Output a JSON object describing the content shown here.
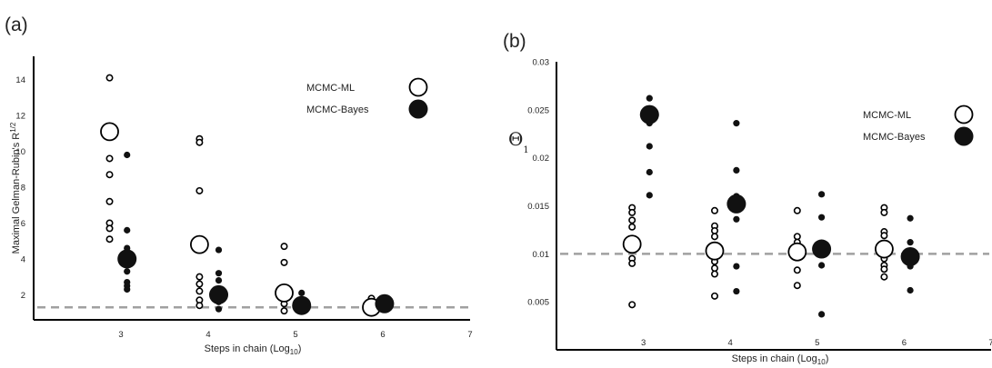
{
  "chart_data": [
    {
      "type": "scatter",
      "panel_label": "(a)",
      "xlabel_main": "Steps in chain (Log",
      "xlabel_sub": "10",
      "xlabel_end": ")",
      "ylabel": "Maximal Gelman-Rubin's R",
      "ylabel_sup": "1/2",
      "xlim": [
        2,
        7
      ],
      "ylim": [
        0.6,
        15.3
      ],
      "xticks": [
        3,
        4,
        5,
        6,
        7
      ],
      "yticks": [
        2,
        4,
        6,
        8,
        10,
        12,
        14
      ],
      "ytick_labels": [
        "2",
        "4",
        "6",
        "8",
        "10",
        "12",
        "14"
      ],
      "reference_line": 1.3,
      "legend": [
        "MCMC-ML",
        "MCMC-Bayes"
      ],
      "series": [
        {
          "name": "MCMC-ML",
          "style": "open",
          "points": [
            [
              2.87,
              14.1
            ],
            [
              2.87,
              9.6
            ],
            [
              2.87,
              8.7
            ],
            [
              2.87,
              7.2
            ],
            [
              2.87,
              6.0
            ],
            [
              2.87,
              5.7
            ],
            [
              2.87,
              5.1
            ],
            [
              3.9,
              10.7
            ],
            [
              3.9,
              10.5
            ],
            [
              3.9,
              7.8
            ],
            [
              3.9,
              3.0
            ],
            [
              3.9,
              2.6
            ],
            [
              3.9,
              2.2
            ],
            [
              3.9,
              1.7
            ],
            [
              3.9,
              1.4
            ],
            [
              4.87,
              4.7
            ],
            [
              4.87,
              3.8
            ],
            [
              4.87,
              1.5
            ],
            [
              4.87,
              1.1
            ],
            [
              5.87,
              1.8
            ],
            [
              5.87,
              1.6
            ],
            [
              5.87,
              1.4
            ]
          ]
        },
        {
          "name": "MCMC-Bayes",
          "style": "filled",
          "points": [
            [
              3.07,
              9.8
            ],
            [
              3.07,
              5.6
            ],
            [
              3.07,
              4.6
            ],
            [
              3.07,
              4.2
            ],
            [
              3.07,
              3.3
            ],
            [
              3.07,
              2.7
            ],
            [
              3.07,
              2.5
            ],
            [
              3.07,
              2.3
            ],
            [
              4.12,
              4.5
            ],
            [
              4.12,
              3.2
            ],
            [
              4.12,
              2.8
            ],
            [
              4.12,
              2.1
            ],
            [
              4.12,
              1.6
            ],
            [
              4.12,
              1.2
            ],
            [
              5.07,
              2.1
            ],
            [
              5.07,
              1.6
            ],
            [
              5.07,
              1.3
            ],
            [
              6.02,
              1.5
            ]
          ]
        },
        {
          "name": "MCMC-ML mean",
          "style": "open-large",
          "points": [
            [
              2.87,
              11.1
            ],
            [
              3.9,
              4.8
            ],
            [
              4.87,
              2.1
            ],
            [
              5.87,
              1.3
            ]
          ]
        },
        {
          "name": "MCMC-Bayes mean",
          "style": "filled-large",
          "points": [
            [
              3.07,
              4.0
            ],
            [
              4.12,
              2.0
            ],
            [
              5.07,
              1.4
            ],
            [
              6.02,
              1.5
            ]
          ]
        }
      ]
    },
    {
      "type": "scatter",
      "panel_label": "(b)",
      "xlabel_main": "Steps in chain (Log",
      "xlabel_sub": "10",
      "xlabel_end": ")",
      "ylabel": "Θ",
      "ylabel_sub": "1",
      "xlim": [
        2,
        7
      ],
      "ylim": [
        0.0,
        0.03
      ],
      "xticks": [
        3,
        4,
        5,
        6,
        7
      ],
      "yticks": [
        0.005,
        0.01,
        0.015,
        0.02,
        0.025,
        0.03
      ],
      "ytick_labels": [
        "0.005",
        "0.01",
        "0.015",
        "0.02",
        "0.025",
        "0.03"
      ],
      "reference_line": 0.01,
      "legend": [
        "MCMC-ML",
        "MCMC-Bayes"
      ],
      "series": [
        {
          "name": "MCMC-ML",
          "style": "open",
          "points": [
            [
              2.87,
              0.0148
            ],
            [
              2.87,
              0.0143
            ],
            [
              2.87,
              0.0135
            ],
            [
              2.87,
              0.0128
            ],
            [
              2.87,
              0.0115
            ],
            [
              2.87,
              0.0095
            ],
            [
              2.87,
              0.009
            ],
            [
              2.87,
              0.0047
            ],
            [
              3.82,
              0.0145
            ],
            [
              3.82,
              0.0129
            ],
            [
              3.82,
              0.0124
            ],
            [
              3.82,
              0.0118
            ],
            [
              3.82,
              0.0092
            ],
            [
              3.82,
              0.0085
            ],
            [
              3.82,
              0.0079
            ],
            [
              3.82,
              0.0056
            ],
            [
              4.77,
              0.0145
            ],
            [
              4.77,
              0.0118
            ],
            [
              4.77,
              0.0112
            ],
            [
              4.77,
              0.0108
            ],
            [
              4.77,
              0.0098
            ],
            [
              4.77,
              0.0083
            ],
            [
              4.77,
              0.0067
            ],
            [
              5.77,
              0.0148
            ],
            [
              5.77,
              0.0143
            ],
            [
              5.77,
              0.0123
            ],
            [
              5.77,
              0.0119
            ],
            [
              5.77,
              0.0095
            ],
            [
              5.77,
              0.0088
            ],
            [
              5.77,
              0.0084
            ],
            [
              5.77,
              0.0076
            ]
          ]
        },
        {
          "name": "MCMC-Bayes",
          "style": "filled",
          "points": [
            [
              3.07,
              0.0262
            ],
            [
              3.07,
              0.0242
            ],
            [
              3.07,
              0.0236
            ],
            [
              3.07,
              0.0212
            ],
            [
              3.07,
              0.0185
            ],
            [
              3.07,
              0.0161
            ],
            [
              4.07,
              0.0236
            ],
            [
              4.07,
              0.0187
            ],
            [
              4.07,
              0.016
            ],
            [
              4.07,
              0.0136
            ],
            [
              4.07,
              0.0087
            ],
            [
              4.07,
              0.0061
            ],
            [
              5.05,
              0.0162
            ],
            [
              5.05,
              0.0138
            ],
            [
              5.05,
              0.0108
            ],
            [
              5.05,
              0.0088
            ],
            [
              5.05,
              0.0037
            ],
            [
              6.07,
              0.0137
            ],
            [
              6.07,
              0.0112
            ],
            [
              6.07,
              0.0094
            ],
            [
              6.07,
              0.0087
            ],
            [
              6.07,
              0.0062
            ]
          ]
        },
        {
          "name": "MCMC-ML mean",
          "style": "open-large",
          "points": [
            [
              2.87,
              0.011
            ],
            [
              3.82,
              0.0103
            ],
            [
              4.77,
              0.0102
            ],
            [
              5.77,
              0.0105
            ]
          ]
        },
        {
          "name": "MCMC-Bayes mean",
          "style": "filled-large",
          "points": [
            [
              3.07,
              0.0245
            ],
            [
              4.07,
              0.0152
            ],
            [
              5.05,
              0.0105
            ],
            [
              6.07,
              0.0097
            ]
          ]
        }
      ]
    }
  ]
}
